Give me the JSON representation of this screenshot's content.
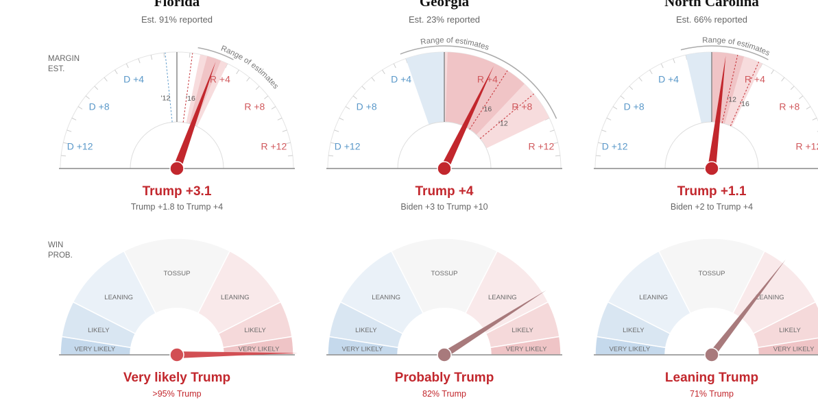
{
  "labels": {
    "margin": [
      "MARGIN",
      "EST."
    ],
    "win": [
      "WIN",
      "PROB."
    ],
    "range": "Range of estimates"
  },
  "margin_ticks": [
    {
      "text": "D +4",
      "value": -4
    },
    {
      "text": "D +8",
      "value": -8
    },
    {
      "text": "D +12",
      "value": -12
    },
    {
      "text": "R +4",
      "value": 4
    },
    {
      "text": "R +8",
      "value": 8
    },
    {
      "text": "R +12",
      "value": 12
    }
  ],
  "zones": [
    {
      "label": "VERY LIKELY",
      "from": 0,
      "to": 0.05,
      "color": "#c5d9ec"
    },
    {
      "label": "LIKELY",
      "from": 0.05,
      "to": 0.15,
      "color": "#d9e6f2"
    },
    {
      "label": "LEANING",
      "from": 0.15,
      "to": 0.35,
      "color": "#eaf1f8"
    },
    {
      "label": "TOSSUP",
      "from": 0.35,
      "to": 0.65,
      "color": "#f6f6f6"
    },
    {
      "label": "LEANING",
      "from": 0.65,
      "to": 0.85,
      "color": "#f9e9ea"
    },
    {
      "label": "LIKELY",
      "from": 0.85,
      "to": 0.95,
      "color": "#f5d9da"
    },
    {
      "label": "VERY LIKELY",
      "from": 0.95,
      "to": 1,
      "color": "#efc4c6"
    }
  ],
  "colors": {
    "red": "#c2272d",
    "blue": "#5a98c9",
    "needle_prob": "#a87a7c"
  },
  "chart_data": [
    {
      "type": "gauge",
      "state": "Florida",
      "reported": "Est. 91% reported",
      "margin": {
        "estimate": 3.1,
        "range": [
          1.8,
          4
        ],
        "past": [
          {
            "year": "'12",
            "value": -0.9
          },
          {
            "year": "'16",
            "value": 1.2
          }
        ],
        "headline": "Trump +3.1",
        "range_text": "Trump +1.8 to Trump +4"
      },
      "win_prob": {
        "value": 0.995,
        "headline": "Very likely Trump",
        "text": ">95% Trump"
      }
    },
    {
      "type": "gauge",
      "state": "Georgia",
      "reported": "Est. 23% reported",
      "margin": {
        "estimate": 4,
        "range": [
          -3,
          10
        ],
        "past": [
          {
            "year": "'12",
            "value": 7.8
          },
          {
            "year": "'16",
            "value": 5.1
          }
        ],
        "headline": "Trump +4",
        "range_text": "Biden +3 to Trump +10"
      },
      "win_prob": {
        "value": 0.82,
        "headline": "Probably Trump",
        "text": "82% Trump"
      }
    },
    {
      "type": "gauge",
      "state": "North Carolina",
      "reported": "Est. 66% reported",
      "margin": {
        "estimate": 1.1,
        "range": [
          -2,
          4
        ],
        "past": [
          {
            "year": "'12",
            "value": 2
          },
          {
            "year": "'16",
            "value": 3.7
          }
        ],
        "headline": "Trump +1.1",
        "range_text": "Biden +2 to Trump +4"
      },
      "win_prob": {
        "value": 0.71,
        "headline": "Leaning Trump",
        "text": "71% Trump"
      }
    }
  ]
}
